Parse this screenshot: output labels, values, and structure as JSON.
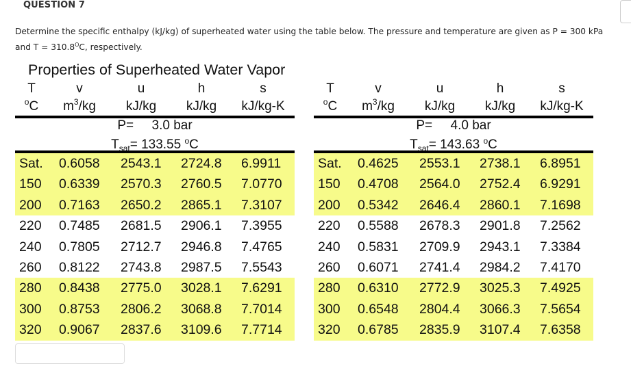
{
  "question": {
    "title": "QUESTION 7",
    "text_before_sup": "Determine the specific enthalpy (kJ/kg) of superheated water using the table below. The pressure and temperature are given as P = 300 kPa and T = 310.8",
    "degree_sup": "O",
    "text_after_sup": "C, respectively."
  },
  "corner_button": {
    "glyph": "⋮"
  },
  "table": {
    "title": "Properties of Superheated Water Vapor",
    "header_symbols": [
      "T",
      "v",
      "u",
      "h",
      "s"
    ],
    "header_units": [
      {
        "base": "°C",
        "sup": ""
      },
      {
        "base": "m",
        "sup": "3",
        "rest": "/kg"
      },
      {
        "base": "kJ/kg"
      },
      {
        "base": "kJ/kg"
      },
      {
        "base": "kJ/kg-K"
      }
    ],
    "highlight_color": "#f7fb8a",
    "panels": [
      {
        "pressure_label": "P=",
        "pressure_value": "3.0 bar",
        "tsat_label": "T",
        "tsat_sub": "sat",
        "tsat_eq": "= 133.55",
        "tsat_unit": "C",
        "tsat_deg": "o",
        "rows": [
          {
            "T": "Sat.",
            "v": "0.6058",
            "u": "2543.1",
            "h": "2724.8",
            "s": "6.9911",
            "highlight": true
          },
          {
            "T": "150",
            "v": "0.6339",
            "u": "2570.3",
            "h": "2760.5",
            "s": "7.0770",
            "highlight": true
          },
          {
            "T": "200",
            "v": "0.7163",
            "u": "2650.2",
            "h": "2865.1",
            "s": "7.3107",
            "highlight": true
          },
          {
            "T": "220",
            "v": "0.7485",
            "u": "2681.5",
            "h": "2906.1",
            "s": "7.3955",
            "highlight": false
          },
          {
            "T": "240",
            "v": "0.7805",
            "u": "2712.7",
            "h": "2946.8",
            "s": "7.4765",
            "highlight": false
          },
          {
            "T": "260",
            "v": "0.8122",
            "u": "2743.8",
            "h": "2987.5",
            "s": "7.5543",
            "highlight": false
          },
          {
            "T": "280",
            "v": "0.8438",
            "u": "2775.0",
            "h": "3028.1",
            "s": "7.6291",
            "highlight": true
          },
          {
            "T": "300",
            "v": "0.8753",
            "u": "2806.2",
            "h": "3068.8",
            "s": "7.7014",
            "highlight": true
          },
          {
            "T": "320",
            "v": "0.9067",
            "u": "2837.6",
            "h": "3109.6",
            "s": "7.7714",
            "highlight": true
          }
        ]
      },
      {
        "pressure_label": "P=",
        "pressure_value": "4.0 bar",
        "tsat_label": "T",
        "tsat_sub": "sat",
        "tsat_eq": "= 143.63",
        "tsat_unit": "C",
        "tsat_deg": "o",
        "rows": [
          {
            "T": "Sat.",
            "v": "0.4625",
            "u": "2553.1",
            "h": "2738.1",
            "s": "6.8951",
            "highlight": true
          },
          {
            "T": "150",
            "v": "0.4708",
            "u": "2564.0",
            "h": "2752.4",
            "s": "6.9291",
            "highlight": true
          },
          {
            "T": "200",
            "v": "0.5342",
            "u": "2646.4",
            "h": "2860.1",
            "s": "7.1698",
            "highlight": true
          },
          {
            "T": "220",
            "v": "0.5588",
            "u": "2678.3",
            "h": "2901.8",
            "s": "7.2562",
            "highlight": false
          },
          {
            "T": "240",
            "v": "0.5831",
            "u": "2709.9",
            "h": "2943.1",
            "s": "7.3384",
            "highlight": false
          },
          {
            "T": "260",
            "v": "0.6071",
            "u": "2741.4",
            "h": "2984.2",
            "s": "7.4170",
            "highlight": false
          },
          {
            "T": "280",
            "v": "0.6310",
            "u": "2772.9",
            "h": "3025.3",
            "s": "7.4925",
            "highlight": true
          },
          {
            "T": "300",
            "v": "0.6548",
            "u": "2804.4",
            "h": "3066.3",
            "s": "7.5654",
            "highlight": true
          },
          {
            "T": "320",
            "v": "0.6785",
            "u": "2835.9",
            "h": "3107.4",
            "s": "7.6358",
            "highlight": true
          }
        ]
      }
    ]
  },
  "answer": {
    "value": ""
  }
}
